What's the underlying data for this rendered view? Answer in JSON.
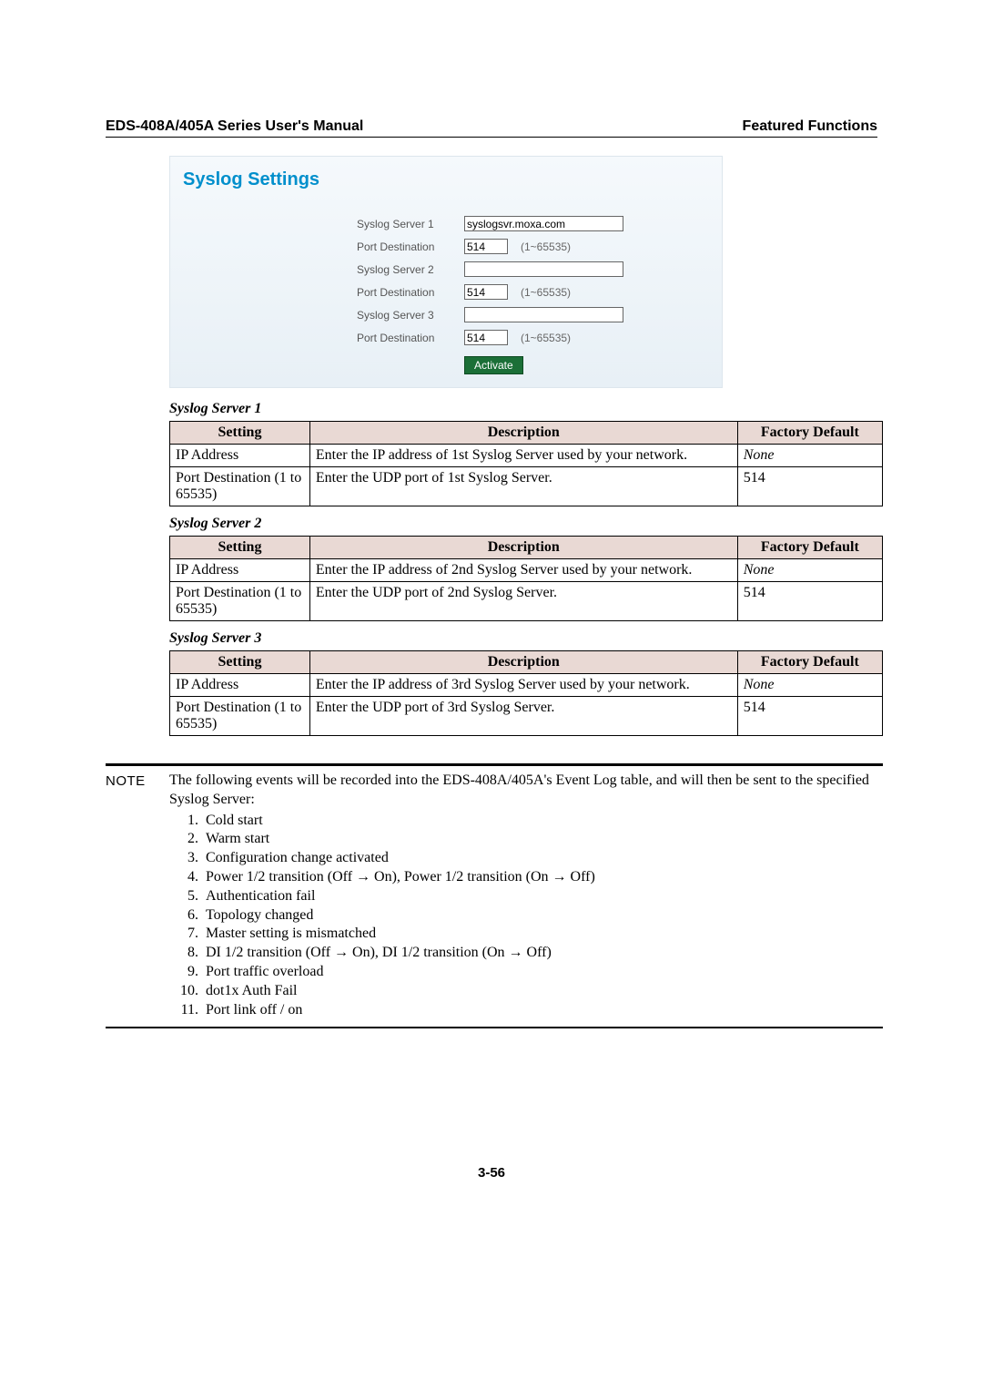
{
  "header": {
    "left": "EDS-408A/405A Series User's Manual",
    "right": "Featured Functions"
  },
  "screenshot": {
    "title": "Syslog Settings",
    "rows": [
      {
        "label": "Syslog Server 1",
        "value": "syslogsvr.moxa.com",
        "wide": true,
        "range": ""
      },
      {
        "label": "Port Destination",
        "value": "514",
        "wide": false,
        "range": "(1~65535)"
      },
      {
        "label": "Syslog Server 2",
        "value": "",
        "wide": true,
        "range": ""
      },
      {
        "label": "Port Destination",
        "value": "514",
        "wide": false,
        "range": "(1~65535)"
      },
      {
        "label": "Syslog Server 3",
        "value": "",
        "wide": true,
        "range": ""
      },
      {
        "label": "Port Destination",
        "value": "514",
        "wide": false,
        "range": "(1~65535)"
      }
    ],
    "activate": "Activate"
  },
  "tables": [
    {
      "caption": "Syslog Server 1",
      "headers": [
        "Setting",
        "Description",
        "Factory Default"
      ],
      "rows": [
        [
          "IP Address",
          "Enter the IP address of 1st Syslog Server used by your network.",
          "None",
          true
        ],
        [
          "Port Destination (1 to 65535)",
          "Enter the UDP port of 1st Syslog Server.",
          "514",
          false
        ]
      ]
    },
    {
      "caption": "Syslog Server 2",
      "headers": [
        "Setting",
        "Description",
        "Factory Default"
      ],
      "rows": [
        [
          "IP Address",
          "Enter the IP address of 2nd Syslog Server used by your network.",
          "None",
          true
        ],
        [
          "Port Destination (1 to 65535)",
          "Enter the UDP port of 2nd Syslog Server.",
          "514",
          false
        ]
      ]
    },
    {
      "caption": "Syslog Server 3",
      "headers": [
        "Setting",
        "Description",
        "Factory Default"
      ],
      "rows": [
        [
          "IP Address",
          "Enter the IP address of 3rd Syslog Server used by your network.",
          "None",
          true
        ],
        [
          "Port Destination (1 to 65535)",
          "Enter the UDP port of 3rd Syslog Server.",
          "514",
          false
        ]
      ]
    }
  ],
  "note": {
    "label": "NOTE",
    "intro": "The following events will be recorded into the EDS-408A/405A's Event Log table, and will then be sent to the specified Syslog Server:",
    "items": [
      "Cold start",
      "Warm start",
      "Configuration change activated",
      "Power 1/2 transition (Off → On), Power 1/2 transition (On → Off)",
      "Authentication fail",
      "Topology changed",
      "Master setting is mismatched",
      "DI 1/2 transition (Off → On), DI 1/2 transition (On → Off)",
      "Port traffic overload",
      "dot1x Auth Fail",
      "Port link off / on"
    ]
  },
  "page_num": "3-56"
}
